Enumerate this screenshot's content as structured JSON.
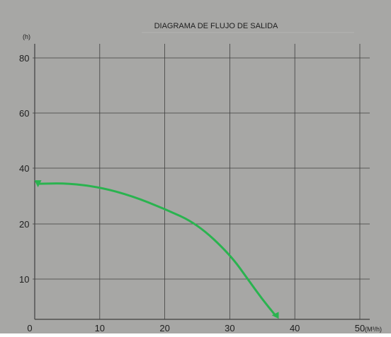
{
  "colors": {
    "background": "#a7a7a5",
    "grid": "#3f3f3f",
    "text": "#1e1e1e",
    "curve": "#2ab34f"
  },
  "chart_data": {
    "type": "line",
    "title": "DIAGRAMA DE FLUJO DE SALIDA",
    "xlabel": "(M³/h)",
    "ylabel": "(h)",
    "xlim": [
      0,
      50
    ],
    "y_ticks": [
      {
        "label": "10",
        "level": 1
      },
      {
        "label": "20",
        "level": 2
      },
      {
        "label": "40",
        "level": 3
      },
      {
        "label": "60",
        "level": 4
      },
      {
        "label": "80",
        "level": 5
      }
    ],
    "x_ticks": [
      0,
      10,
      20,
      30,
      40,
      50
    ],
    "grid": true,
    "series": [
      {
        "x": [
          0.5,
          5,
          10,
          15,
          20,
          25,
          30,
          33,
          35,
          37
        ],
        "y_level": [
          2.72,
          2.73,
          2.66,
          2.5,
          2.27,
          2.0,
          1.45,
          0.95,
          0.5,
          -0.1
        ]
      }
    ]
  }
}
